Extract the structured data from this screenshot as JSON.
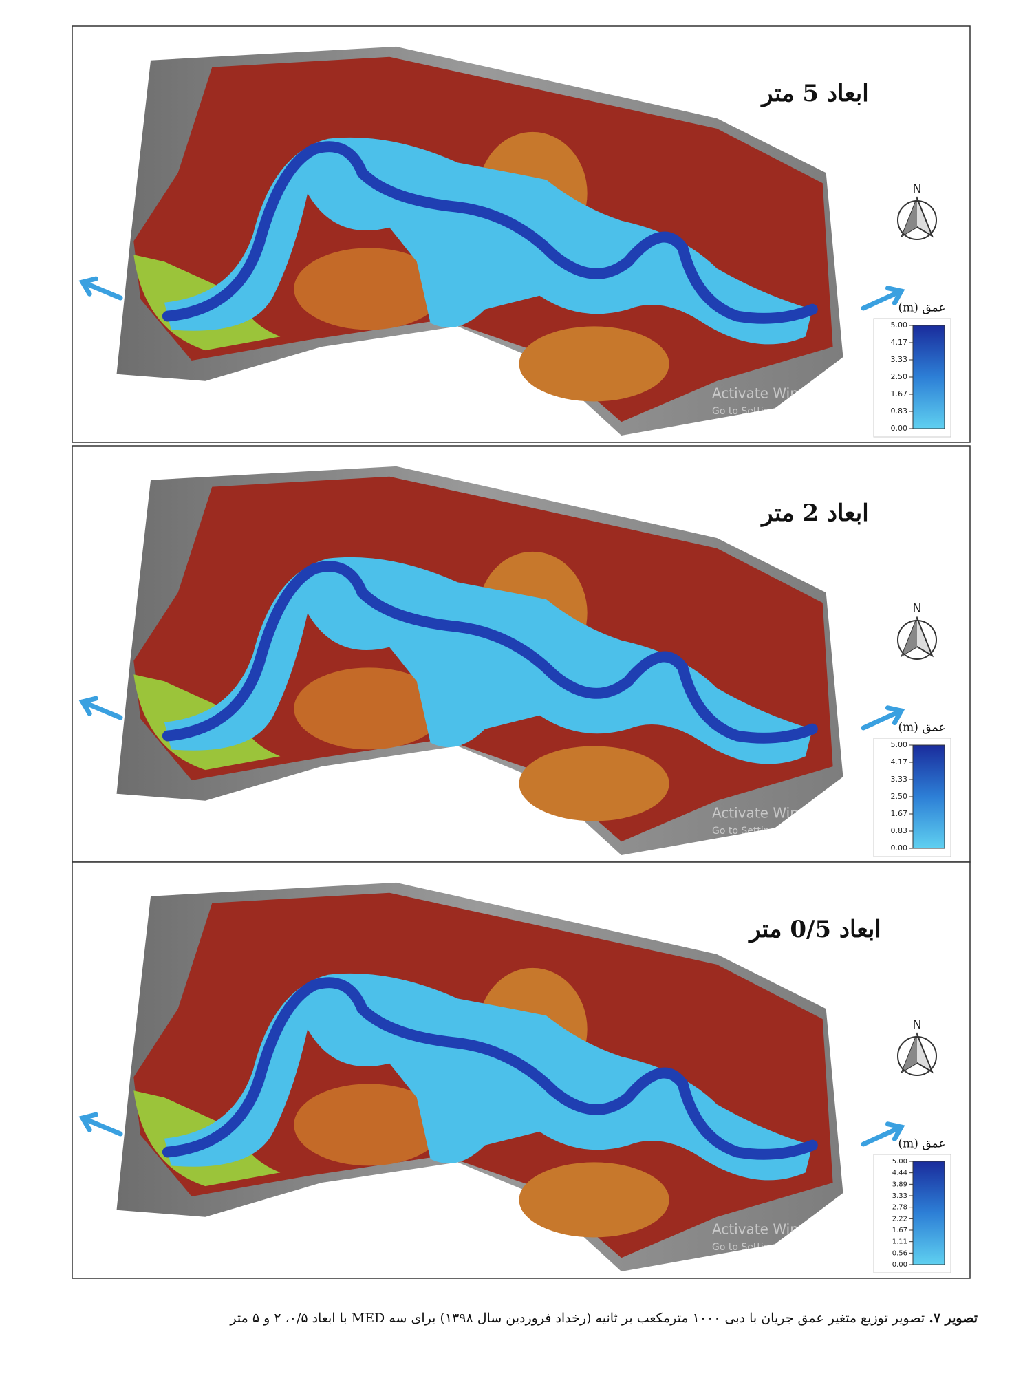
{
  "figure": {
    "panels": [
      {
        "title": "ابعاد 5 متر",
        "north": "N",
        "legend": {
          "label": "عمق (m)",
          "ticks": [
            "5.00",
            "4.17",
            "3.33",
            "2.50",
            "1.67",
            "0.83",
            "0.00"
          ]
        },
        "watermark": [
          "Activate Windows",
          "Go to Settings to activate Windows."
        ]
      },
      {
        "title": "ابعاد 2 متر",
        "north": "N",
        "legend": {
          "label": "عمق (m)",
          "ticks": [
            "5.00",
            "4.17",
            "3.33",
            "2.50",
            "1.67",
            "0.83",
            "0.00"
          ]
        },
        "watermark": [
          "Activate Windows",
          "Go to Settings to activate Windows."
        ]
      },
      {
        "title": "ابعاد 0/5 متر",
        "north": "N",
        "legend": {
          "label": "عمق (m)",
          "ticks": [
            "5.00",
            "4.44",
            "3.89",
            "3.33",
            "2.78",
            "2.22",
            "1.67",
            "1.11",
            "0.56",
            "0.00"
          ]
        },
        "watermark": [
          "Activate Windows",
          "Go to Settings to activate Windows."
        ]
      }
    ],
    "caption": {
      "label": "تصویر ۷.",
      "text": "تصویر توزیع متغیر عمق جریان با دبی ۱۰۰۰ مترمکعب بر ثانیه (رخداد فروردین سال ۱۳۹۸) برای سه MED با ابعاد ۰/۵، ۲ و ۵ متر"
    }
  }
}
